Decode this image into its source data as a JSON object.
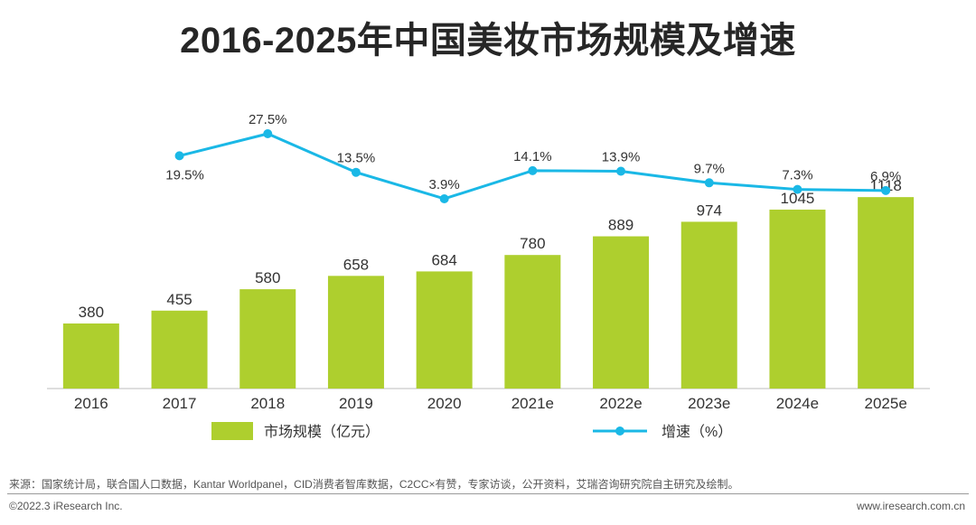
{
  "chart_data": {
    "type": "bar+line",
    "title": "2016-2025年中国美妆市场规模及增速",
    "categories": [
      "2016",
      "2017",
      "2018",
      "2019",
      "2020",
      "2021e",
      "2022e",
      "2023e",
      "2024e",
      "2025e"
    ],
    "series": [
      {
        "name": "市场规模（亿元）",
        "type": "bar",
        "values": [
          380,
          455,
          580,
          658,
          684,
          780,
          889,
          974,
          1045,
          1118
        ],
        "color": "#aecf2e"
      },
      {
        "name": "增速（%）",
        "type": "line",
        "values": [
          null,
          19.5,
          27.5,
          13.5,
          3.9,
          14.1,
          13.9,
          9.7,
          7.3,
          6.9
        ],
        "labels": [
          "",
          "19.5%",
          "27.5%",
          "13.5%",
          "3.9%",
          "14.1%",
          "13.9%",
          "9.7%",
          "7.3%",
          "6.9%"
        ],
        "color": "#1ab8e6"
      }
    ],
    "legend": [
      "市场规模（亿元）",
      "增速（%）"
    ],
    "legend_position": "bottom"
  },
  "source": "来源：国家统计局，联合国人口数据，Kantar Worldpanel，CID消费者智库数据，C2CC×有赞，专家访谈，公开资料，艾瑞咨询研究院自主研究及绘制。",
  "copyright": "©2022.3 iResearch Inc.",
  "website": "www.iresearch.com.cn"
}
